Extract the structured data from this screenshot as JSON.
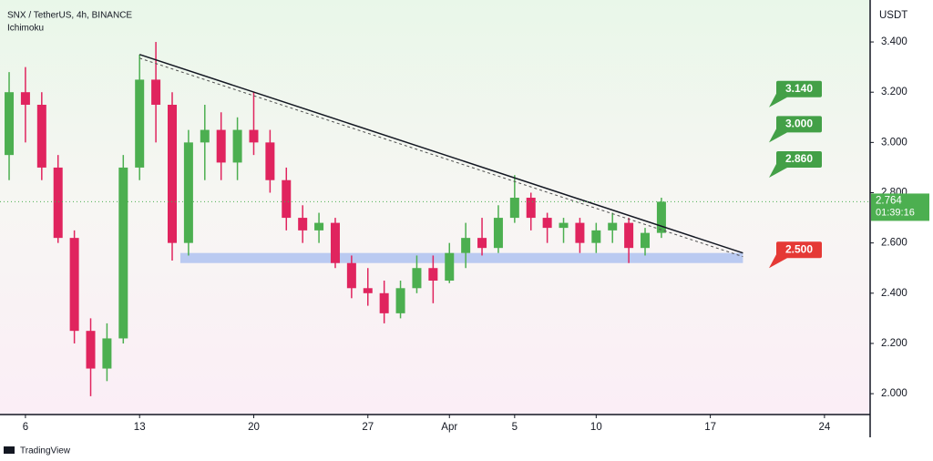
{
  "header": {
    "symbol": "SNX / TetherUS, 4h, BINANCE",
    "indicator": "Ichimoku",
    "currency": "USDT",
    "brand": "TradingView"
  },
  "chart_data": {
    "type": "candlestick",
    "x": [
      5,
      6,
      7,
      8,
      9,
      10,
      11,
      12,
      13,
      14,
      15,
      16,
      17,
      18,
      19,
      20,
      21,
      22,
      23,
      24,
      25,
      26,
      27,
      28,
      29,
      30,
      31,
      32,
      33,
      34,
      35,
      36,
      37,
      38,
      39,
      40,
      41,
      42,
      43,
      44,
      45
    ],
    "open": [
      2.95,
      3.2,
      3.15,
      2.9,
      2.62,
      2.25,
      2.1,
      2.22,
      2.9,
      3.25,
      3.15,
      2.6,
      3.0,
      3.05,
      2.92,
      3.05,
      3.0,
      2.85,
      2.7,
      2.65,
      2.68,
      2.52,
      2.42,
      2.4,
      2.32,
      2.42,
      2.5,
      2.45,
      2.56,
      2.62,
      2.58,
      2.7,
      2.78,
      2.7,
      2.66,
      2.68,
      2.6,
      2.65,
      2.68,
      2.58,
      2.64
    ],
    "high": [
      3.28,
      3.3,
      3.2,
      2.95,
      2.65,
      2.3,
      2.28,
      2.95,
      3.35,
      3.4,
      3.2,
      3.05,
      3.15,
      3.12,
      3.1,
      3.2,
      3.05,
      2.9,
      2.75,
      2.72,
      2.7,
      2.55,
      2.5,
      2.45,
      2.45,
      2.55,
      2.55,
      2.6,
      2.68,
      2.7,
      2.75,
      2.87,
      2.8,
      2.72,
      2.7,
      2.7,
      2.68,
      2.72,
      2.7,
      2.66,
      2.78
    ],
    "low": [
      2.85,
      3.0,
      2.85,
      2.6,
      2.2,
      1.99,
      2.05,
      2.2,
      2.85,
      3.0,
      2.53,
      2.55,
      2.85,
      2.85,
      2.85,
      2.95,
      2.8,
      2.65,
      2.6,
      2.6,
      2.5,
      2.38,
      2.35,
      2.28,
      2.3,
      2.4,
      2.36,
      2.44,
      2.5,
      2.55,
      2.56,
      2.68,
      2.65,
      2.6,
      2.6,
      2.56,
      2.56,
      2.6,
      2.52,
      2.55,
      2.62
    ],
    "close": [
      3.2,
      3.15,
      2.9,
      2.62,
      2.25,
      2.1,
      2.22,
      2.9,
      3.25,
      3.15,
      2.6,
      3.0,
      3.05,
      2.92,
      3.05,
      3.0,
      2.85,
      2.7,
      2.65,
      2.68,
      2.52,
      2.42,
      2.4,
      2.32,
      2.42,
      2.5,
      2.45,
      2.56,
      2.62,
      2.58,
      2.7,
      2.78,
      2.7,
      2.66,
      2.68,
      2.6,
      2.65,
      2.68,
      2.58,
      2.64,
      2.764
    ],
    "up_color": "#4caf50",
    "down_color": "#e0245e",
    "xlim": [
      4.44,
      57.8
    ],
    "xticks": [
      6,
      13,
      20,
      27,
      {
        "value": 32,
        "label": "Apr"
      },
      {
        "value": 36,
        "label": "5"
      },
      {
        "value": 41,
        "label": "10"
      },
      {
        "value": 48,
        "label": "17"
      },
      {
        "value": 55,
        "label": "24"
      }
    ],
    "ylim": [
      1.917,
      3.567
    ],
    "yticks": [
      {
        "value": 2.0,
        "label": "2.000"
      },
      {
        "value": 2.2,
        "label": "2.200"
      },
      {
        "value": 2.4,
        "label": "2.400"
      },
      {
        "value": 2.6,
        "label": "2.600"
      },
      {
        "value": 2.8,
        "label": "2.800"
      },
      {
        "value": 3.0,
        "label": "3.000"
      },
      {
        "value": 3.2,
        "label": "3.200"
      },
      {
        "value": 3.4,
        "label": "3.400"
      }
    ],
    "trendline": {
      "x": [
        13,
        50
      ],
      "y": [
        3.35,
        2.56
      ]
    },
    "support_zone": [
      2.52,
      2.56
    ],
    "targets": [
      {
        "value": 3.14,
        "label": "3.140",
        "color": "#43a047"
      },
      {
        "value": 3.0,
        "label": "3.000",
        "color": "#43a047"
      },
      {
        "value": 2.86,
        "label": "2.860",
        "color": "#43a047"
      },
      {
        "value": 2.5,
        "label": "2.500",
        "color": "#e53935"
      }
    ],
    "last_price": {
      "value": 2.764,
      "label": "2.764",
      "countdown": "01:39:16"
    }
  }
}
